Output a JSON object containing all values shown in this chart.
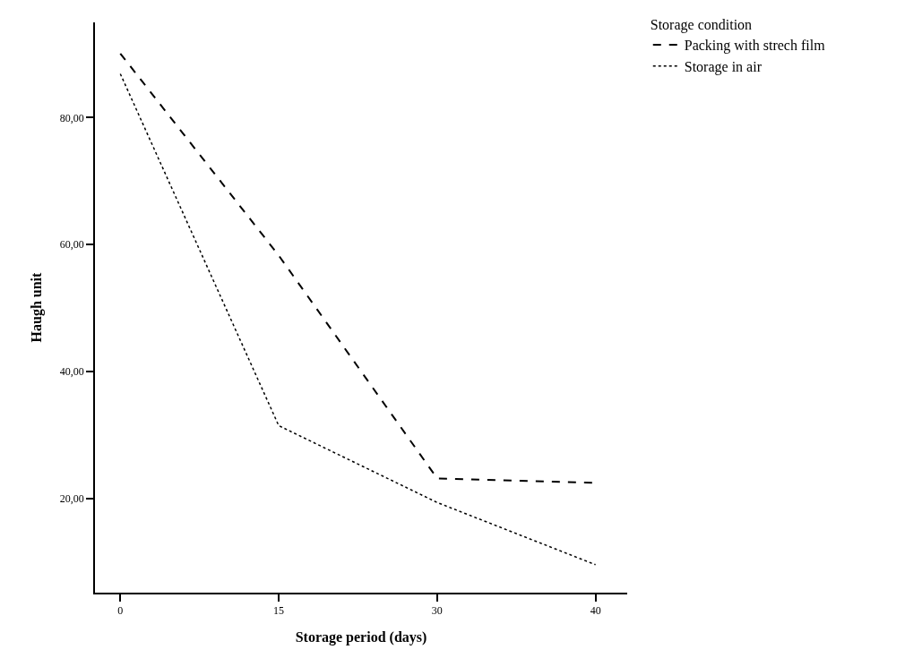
{
  "chart_data": {
    "type": "line",
    "xlabel": "Storage period (days)",
    "ylabel": "Haugh unit",
    "legend_title": "Storage condition",
    "categories": [
      "0",
      "15",
      "30",
      "40"
    ],
    "series": [
      {
        "name": "Packing with strech film",
        "color": "#000000",
        "values": [
          90.1,
          58.3,
          23.2,
          22.5
        ],
        "line_style": "dashed"
      },
      {
        "name": "Storage in air",
        "color": "#000000",
        "values": [
          86.9,
          31.5,
          19.4,
          9.6
        ],
        "line_style": "dotted"
      }
    ],
    "ylim": [
      5.2,
      95
    ],
    "yticks": [
      {
        "value": 20,
        "label": "20,00"
      },
      {
        "value": 40,
        "label": "40,00"
      },
      {
        "value": 60,
        "label": "60,00"
      },
      {
        "value": 80,
        "label": "80,00"
      }
    ],
    "grid": false,
    "legend": "top right",
    "marker": "none"
  }
}
